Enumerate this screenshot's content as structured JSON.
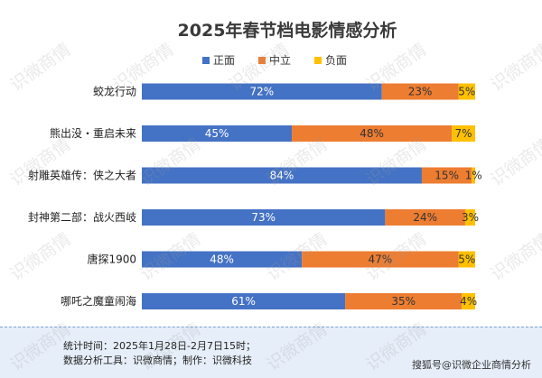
{
  "chart_data": {
    "type": "bar",
    "orientation": "horizontal-stacked-100",
    "title": "2025年春节档电影情感分析",
    "categories": [
      "蛟龙行动",
      "熊出没・重启未来",
      "射雕英雄传：侠之大者",
      "封神第二部：战火西岐",
      "唐探1900",
      "哪吒之魔童闹海"
    ],
    "series": [
      {
        "name": "正面",
        "color": "#4472c4",
        "values": [
          72,
          45,
          84,
          73,
          48,
          61
        ],
        "labels": [
          "72%",
          "45%",
          "84%",
          "73%",
          "48%",
          "61%"
        ]
      },
      {
        "name": "中立",
        "color": "#ed7d31",
        "values": [
          23,
          48,
          15,
          24,
          47,
          35
        ],
        "labels": [
          "23%",
          "48%",
          "15%",
          "24%",
          "47%",
          "35%"
        ]
      },
      {
        "name": "负面",
        "color": "#ffc000",
        "values": [
          5,
          7,
          1,
          3,
          5,
          4
        ],
        "labels": [
          "5%",
          "7%",
          "1%",
          "3%",
          "5%",
          "4%"
        ]
      }
    ],
    "xlim": [
      0,
      100
    ],
    "legend_position": "top",
    "grid": false
  },
  "footer": {
    "line1": "统计时间：2025年1月28日-2月7日15时；",
    "line2": "数据分析工具：识微商情；制作：识微科技",
    "credit": "搜狐号@识微企业商情分析"
  },
  "watermark": "识微商情"
}
